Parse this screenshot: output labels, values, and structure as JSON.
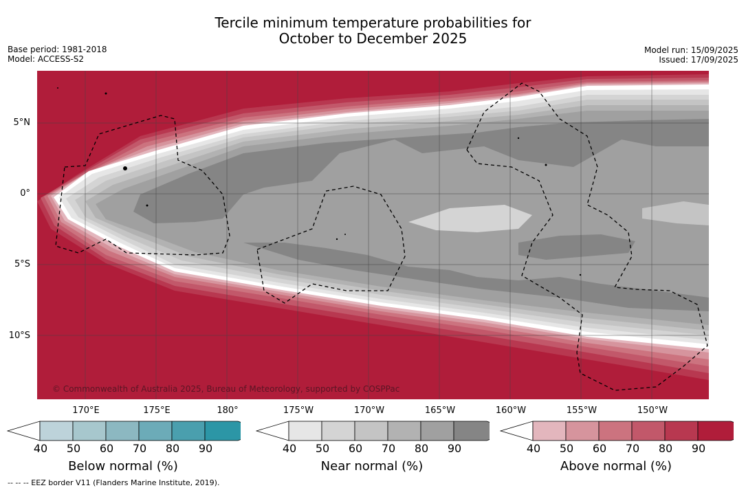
{
  "header": {
    "title_line1": "Tercile minimum temperature probabilities for",
    "title_line2": "October to December 2025",
    "base_period": "Base period: 1981-2018",
    "model": "Model: ACCESS-S2",
    "model_run": "Model run: 15/09/2025",
    "issued": "Issued: 17/09/2025"
  },
  "map": {
    "lat_labels": [
      "5°N",
      "0°",
      "5°S",
      "10°S"
    ],
    "lon_labels": [
      "170°E",
      "175°E",
      "180°",
      "175°W",
      "170°W",
      "165°W",
      "160°W",
      "155°W",
      "150°W"
    ],
    "watermark": "© Commonwealth of Australia 2025, Bureau of Meteorology, supported by COSPPac",
    "colors": {
      "above_dominant": "#b01d3a",
      "near_dominant": "#858585",
      "grid": "#444444",
      "eez": "#000000"
    }
  },
  "colorbars": [
    {
      "title": "Below normal (%)",
      "ticks": [
        "40",
        "50",
        "60",
        "70",
        "80",
        "90"
      ],
      "colors": [
        "#bdd3da",
        "#a7c7cd",
        "#8cb8c1",
        "#6cabb8",
        "#4a9fae",
        "#2c96a6"
      ]
    },
    {
      "title": "Near normal (%)",
      "ticks": [
        "40",
        "50",
        "60",
        "70",
        "80",
        "90"
      ],
      "colors": [
        "#e6e6e6",
        "#d4d4d4",
        "#c4c4c4",
        "#b2b2b2",
        "#a0a0a0",
        "#858585"
      ]
    },
    {
      "title": "Above normal (%)",
      "ticks": [
        "40",
        "50",
        "60",
        "70",
        "80",
        "90"
      ],
      "colors": [
        "#e3b6bd",
        "#d6949d",
        "#cc737f",
        "#c2586a",
        "#b83850",
        "#b01d3a"
      ]
    }
  ],
  "footer": "-- -- -- EEZ border V11 (Flanders Marine Institute, 2019)."
}
